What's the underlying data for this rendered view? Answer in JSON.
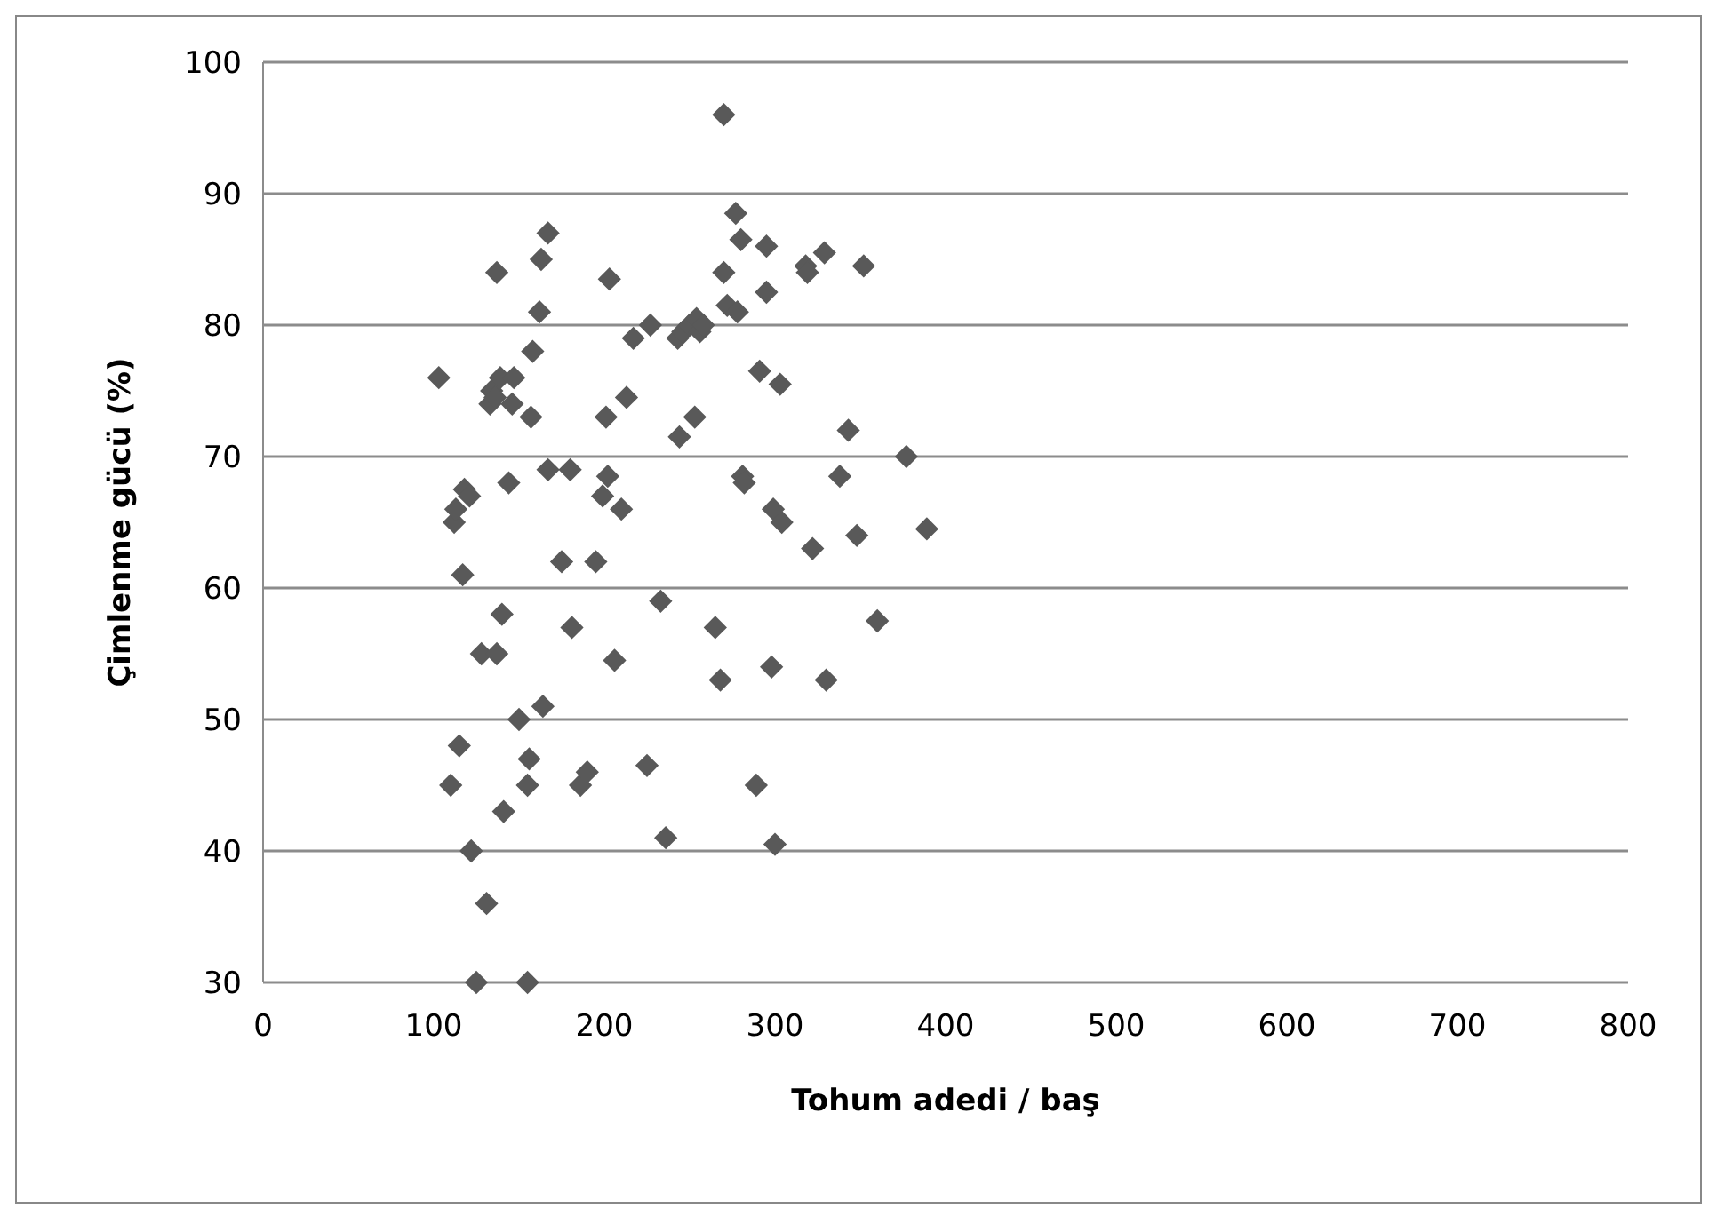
{
  "chart_data": {
    "type": "scatter",
    "xlabel": "Tohum adedi / baş",
    "ylabel": "Çimlenme gücü (%)",
    "xlim": [
      0,
      800
    ],
    "xticks": [
      0,
      100,
      200,
      300,
      400,
      500,
      600,
      700,
      800
    ],
    "ylim": [
      30,
      100
    ],
    "yticks": [
      30,
      40,
      50,
      60,
      70,
      80,
      90,
      100
    ],
    "grid": "y",
    "marker": "diamond",
    "series": [
      {
        "color": "#595959",
        "x": [
          103,
          110,
          112,
          113,
          115,
          117,
          118,
          121,
          122,
          128,
          131,
          133,
          134,
          136,
          137,
          137,
          139,
          140,
          141,
          144,
          146,
          147,
          150,
          155,
          156,
          157,
          158,
          162,
          163,
          164,
          167,
          167,
          175,
          180,
          181,
          186,
          190,
          195,
          199,
          201,
          202,
          203,
          206,
          210,
          213,
          217,
          225,
          227,
          233,
          236,
          243,
          244,
          246,
          250,
          253,
          254,
          256,
          258,
          265,
          268,
          270,
          270,
          272,
          277,
          278,
          280,
          281,
          282,
          289,
          291,
          295,
          295,
          298,
          299,
          300,
          303,
          304,
          318,
          319,
          322,
          329,
          330,
          338,
          343,
          348,
          352,
          360,
          377,
          389,
          125,
          155
        ],
        "values": [
          76,
          45,
          65,
          66,
          48,
          61,
          67.5,
          67,
          40,
          55,
          36,
          74,
          75,
          74.5,
          84,
          55,
          76,
          58,
          43,
          68,
          74,
          76,
          50,
          45,
          47,
          73,
          78,
          81,
          85,
          51,
          87,
          69,
          62,
          69,
          57,
          45,
          46,
          62,
          67,
          73,
          68.5,
          83.5,
          54.5,
          66,
          74.5,
          79,
          46.5,
          80,
          59,
          41,
          79,
          71.5,
          79.5,
          80,
          73,
          80.5,
          79.5,
          80,
          57,
          53,
          84,
          96,
          81.5,
          88.5,
          81,
          86.5,
          68.5,
          68,
          45,
          76.5,
          82.5,
          86,
          54,
          66,
          40.5,
          75.5,
          65,
          84.5,
          84,
          63,
          85.5,
          53,
          68.5,
          72,
          64,
          84.5,
          57.5,
          70,
          64.5,
          30,
          30
        ]
      }
    ]
  }
}
